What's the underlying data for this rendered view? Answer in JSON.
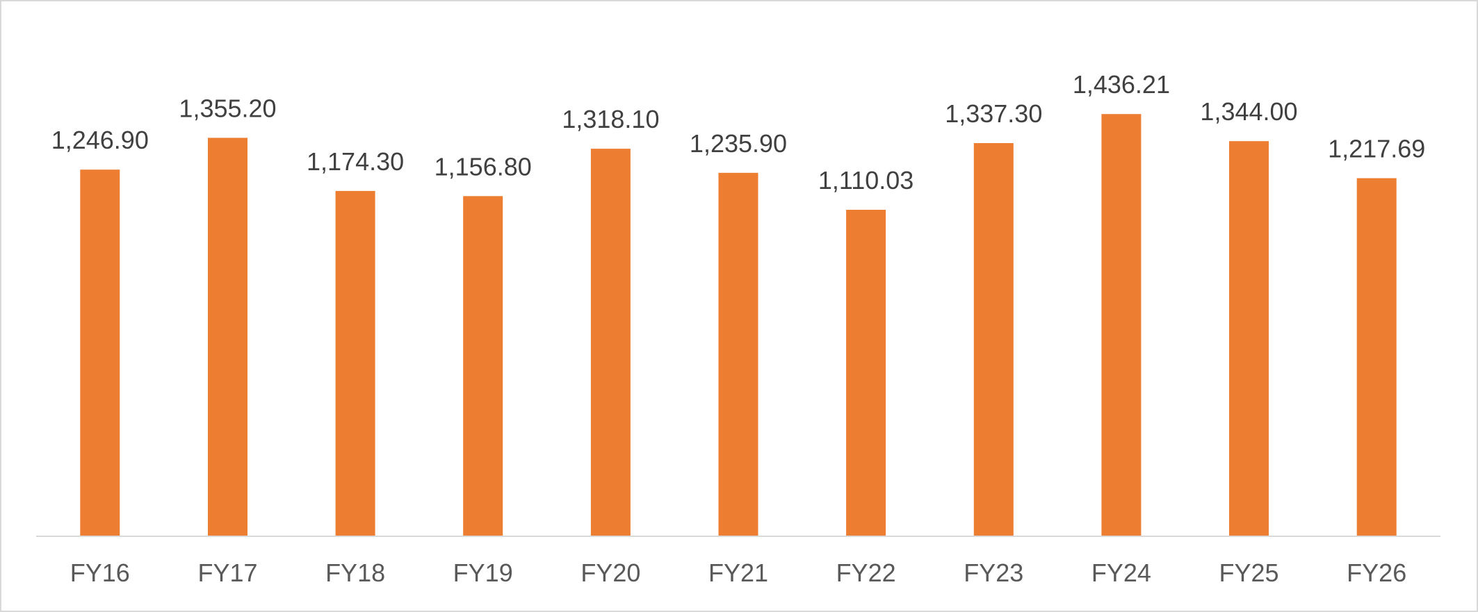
{
  "chart_data": {
    "type": "bar",
    "title": "",
    "xlabel": "",
    "ylabel": "",
    "categories": [
      "FY16",
      "FY17",
      "FY18",
      "FY19",
      "FY20",
      "FY21",
      "FY22",
      "FY23",
      "FY24",
      "FY25",
      "FY26"
    ],
    "values": [
      1246.9,
      1355.2,
      1174.3,
      1156.8,
      1318.1,
      1235.9,
      1110.03,
      1337.3,
      1436.21,
      1344.0,
      1217.69
    ],
    "value_labels": [
      "1,246.90",
      "1,355.20",
      "1,174.30",
      "1,156.80",
      "1,318.10",
      "1,235.90",
      "1,110.03",
      "1,337.30",
      "1,436.21",
      "1,344.00",
      "1,217.69"
    ],
    "ylim": [
      0,
      1600
    ],
    "grid": false,
    "legend": "none",
    "bar_color": "#ED7D31",
    "axis_color": "#d9d9d9"
  }
}
